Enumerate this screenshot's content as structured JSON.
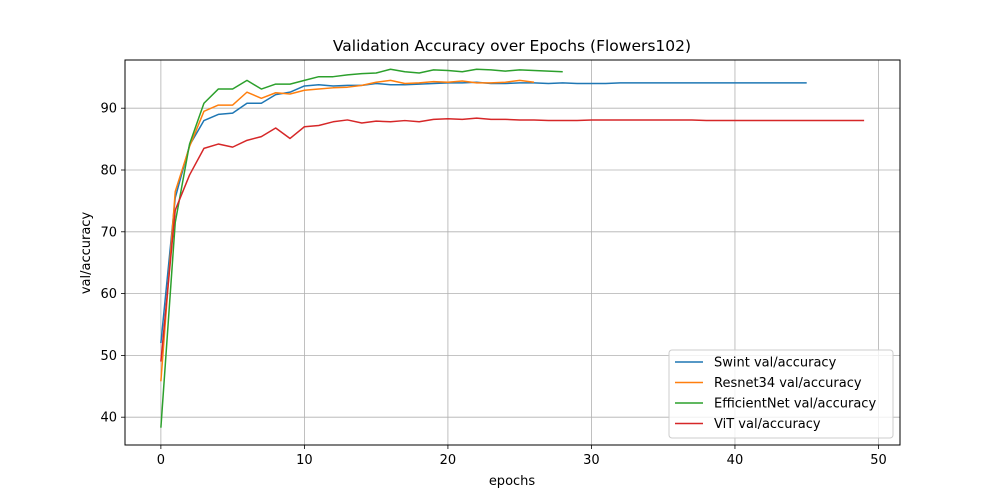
{
  "chart_data": {
    "type": "line",
    "title": "Validation Accuracy over Epochs (Flowers102)",
    "xlabel": "epochs",
    "ylabel": "val/accuracy",
    "xlim": [
      -2.5,
      51.5
    ],
    "ylim": [
      35.5,
      97.8
    ],
    "xticks": [
      0,
      10,
      20,
      30,
      40,
      50
    ],
    "yticks": [
      40,
      50,
      60,
      70,
      80,
      90
    ],
    "grid": true,
    "legend_position": "lower-right",
    "series": [
      {
        "name": "Swint val/accuracy",
        "color": "#1f77b4",
        "x": [
          0,
          1,
          2,
          3,
          4,
          5,
          6,
          7,
          8,
          9,
          10,
          11,
          12,
          13,
          14,
          15,
          16,
          17,
          18,
          19,
          20,
          21,
          22,
          23,
          24,
          25,
          26,
          27,
          28,
          29,
          30,
          31,
          32,
          33,
          34,
          35,
          36,
          37,
          38,
          39,
          40,
          41,
          42,
          43,
          44,
          45
        ],
        "y": [
          52.0,
          75.5,
          84.0,
          88.0,
          89.0,
          89.2,
          90.8,
          90.8,
          92.2,
          92.6,
          93.6,
          93.8,
          93.6,
          93.7,
          93.7,
          94.0,
          93.8,
          93.8,
          93.9,
          94.0,
          94.1,
          94.1,
          94.2,
          94.0,
          94.0,
          94.1,
          94.1,
          94.0,
          94.1,
          94.0,
          94.0,
          94.0,
          94.1,
          94.1,
          94.1,
          94.1,
          94.1,
          94.1,
          94.1,
          94.1,
          94.1,
          94.1,
          94.1,
          94.1,
          94.1,
          94.1
        ]
      },
      {
        "name": "Resnet34 val/accuracy",
        "color": "#ff7f0e",
        "x": [
          0,
          1,
          2,
          3,
          4,
          5,
          6,
          7,
          8,
          9,
          10,
          11,
          12,
          13,
          14,
          15,
          16,
          17,
          18,
          19,
          20,
          21,
          22,
          23,
          24,
          25,
          26
        ],
        "y": [
          45.8,
          76.5,
          83.8,
          89.5,
          90.5,
          90.5,
          92.6,
          91.6,
          92.5,
          92.3,
          92.9,
          93.1,
          93.3,
          93.4,
          93.7,
          94.2,
          94.5,
          94.0,
          94.1,
          94.3,
          94.2,
          94.4,
          94.1,
          94.1,
          94.2,
          94.5,
          94.2
        ]
      },
      {
        "name": "EfficientNet val/accuracy",
        "color": "#2ca02c",
        "x": [
          0,
          1,
          2,
          3,
          4,
          5,
          6,
          7,
          8,
          9,
          10,
          11,
          12,
          13,
          14,
          15,
          16,
          17,
          18,
          19,
          20,
          21,
          22,
          23,
          24,
          25,
          26,
          27,
          28
        ],
        "y": [
          38.3,
          71.5,
          84.2,
          90.8,
          93.1,
          93.1,
          94.5,
          93.1,
          93.9,
          93.9,
          94.5,
          95.1,
          95.1,
          95.4,
          95.6,
          95.7,
          96.3,
          95.9,
          95.7,
          96.2,
          96.1,
          95.9,
          96.3,
          96.2,
          96.0,
          96.2,
          96.1,
          96.0,
          95.9
        ]
      },
      {
        "name": "ViT val/accuracy",
        "color": "#d62728",
        "x": [
          0,
          1,
          2,
          3,
          4,
          5,
          6,
          7,
          8,
          9,
          10,
          11,
          12,
          13,
          14,
          15,
          16,
          17,
          18,
          19,
          20,
          21,
          22,
          23,
          24,
          25,
          26,
          27,
          28,
          29,
          30,
          31,
          32,
          33,
          34,
          35,
          36,
          37,
          38,
          39,
          40,
          41,
          42,
          43,
          44,
          45,
          46,
          47,
          48,
          49
        ],
        "y": [
          49.0,
          73.5,
          79.2,
          83.5,
          84.2,
          83.7,
          84.8,
          85.4,
          86.8,
          85.1,
          87.0,
          87.2,
          87.8,
          88.1,
          87.6,
          87.9,
          87.8,
          88.0,
          87.8,
          88.2,
          88.3,
          88.2,
          88.4,
          88.2,
          88.2,
          88.1,
          88.1,
          88.0,
          88.0,
          88.0,
          88.1,
          88.1,
          88.1,
          88.1,
          88.1,
          88.1,
          88.1,
          88.1,
          88.0,
          88.0,
          88.0,
          88.0,
          88.0,
          88.0,
          88.0,
          88.0,
          88.0,
          88.0,
          88.0,
          88.0
        ]
      }
    ]
  }
}
